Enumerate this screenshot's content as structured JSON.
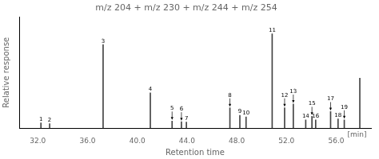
{
  "chart_data": {
    "type": "bar",
    "title": "m/z 204 + m/z 230 + m/z 244 + m/z 254",
    "xlabel": "Retention time",
    "ylabel": "Relative response",
    "x": [
      32.25,
      32.95,
      37.25,
      41.05,
      42.8,
      43.55,
      43.95,
      47.45,
      48.25,
      48.75,
      50.85,
      51.85,
      52.55,
      53.55,
      54.05,
      54.35,
      55.55,
      56.15,
      56.65,
      57.9
    ],
    "values": [
      0.055,
      0.048,
      0.885,
      0.375,
      0.075,
      0.068,
      0.065,
      0.215,
      0.135,
      0.12,
      1.0,
      0.215,
      0.255,
      0.088,
      0.125,
      0.088,
      0.175,
      0.098,
      0.088,
      0.53
    ],
    "peak_labels": [
      "1",
      "2",
      "3",
      "4",
      "5",
      "6",
      "7",
      "8",
      "9",
      "10",
      "11",
      "12",
      "13",
      "14",
      "15",
      "16",
      "17",
      "18",
      "19",
      null
    ],
    "arrows": [
      false,
      false,
      false,
      false,
      true,
      true,
      false,
      true,
      false,
      false,
      false,
      true,
      true,
      false,
      true,
      false,
      true,
      false,
      true,
      false
    ],
    "color": "#444444",
    "xlim": [
      30.5,
      58.8
    ],
    "ylim": [
      0,
      1.18
    ],
    "xticks": [
      {
        "value": 32.0,
        "label": "32.0"
      },
      {
        "value": 36.0,
        "label": "36.0"
      },
      {
        "value": 40.0,
        "label": "40.0"
      },
      {
        "value": 44.0,
        "label": "44.0"
      },
      {
        "value": 48.0,
        "label": "48.0"
      },
      {
        "value": 52.0,
        "label": "52.0"
      },
      {
        "value": 56.0,
        "label": "56.0"
      }
    ],
    "tick_labels": "x",
    "grid": false,
    "annotations": [
      {
        "text": "[min]"
      }
    ]
  }
}
